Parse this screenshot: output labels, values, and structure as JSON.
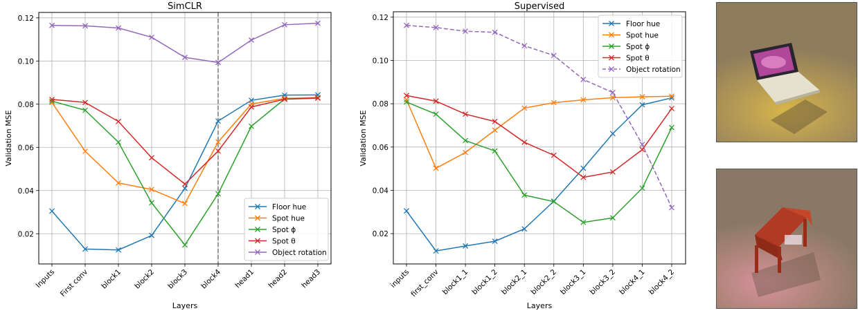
{
  "colors": {
    "floor_hue": "#1f77b4",
    "spot_hue": "#ff7f0e",
    "spot_phi": "#2ca02c",
    "spot_theta": "#d62728",
    "object_rotation": "#9467bd",
    "grid": "#b0b0b0",
    "vline": "#808080"
  },
  "chart_data": [
    {
      "type": "line",
      "title": "SimCLR",
      "xlabel": "Layers",
      "ylabel": "Validation MSE",
      "categories": [
        "Inputs",
        "First conv",
        "block1",
        "block2",
        "block3",
        "block4",
        "head1",
        "head2",
        "head3"
      ],
      "yticks": [
        "0.02",
        "0.04",
        "0.06",
        "0.08",
        "0.10",
        "0.12"
      ],
      "ylim": [
        0.006,
        0.1225
      ],
      "grid": true,
      "legend_position": "lower-right",
      "vertical_marker": "block4",
      "series": [
        {
          "name": "Floor hue",
          "color_key": "floor_hue",
          "dashed": false,
          "values": [
            0.0305,
            0.0129,
            0.0125,
            0.0192,
            0.041,
            0.0722,
            0.0818,
            0.0842,
            0.0843
          ]
        },
        {
          "name": "Spot hue",
          "color_key": "spot_hue",
          "dashed": false,
          "values": [
            0.0808,
            0.0582,
            0.0435,
            0.0405,
            0.034,
            0.0625,
            0.0801,
            0.0827,
            0.0831
          ]
        },
        {
          "name": "Spot ϕ",
          "color_key": "spot_phi",
          "dashed": false,
          "values": [
            0.0814,
            0.0772,
            0.0624,
            0.0343,
            0.0148,
            0.0385,
            0.0698,
            0.0824,
            0.0829
          ]
        },
        {
          "name": "Spot θ",
          "color_key": "spot_theta",
          "dashed": false,
          "values": [
            0.0822,
            0.0808,
            0.072,
            0.0552,
            0.043,
            0.0583,
            0.0787,
            0.0823,
            0.0828
          ]
        },
        {
          "name": "Object rotation",
          "color_key": "object_rotation",
          "dashed": false,
          "values": [
            0.1165,
            0.1163,
            0.1153,
            0.111,
            0.1017,
            0.0993,
            0.1097,
            0.1168,
            0.1175
          ]
        }
      ]
    },
    {
      "type": "line",
      "title": "Supervised",
      "xlabel": "Layers",
      "ylabel": "Validation MSE",
      "categories": [
        "inputs",
        "first_conv",
        "block1_1",
        "block1_2",
        "block2_1",
        "block2_2",
        "block3_1",
        "block3_2",
        "block4_1",
        "block4_2"
      ],
      "yticks": [
        "0.02",
        "0.04",
        "0.06",
        "0.08",
        "0.10",
        "0.12"
      ],
      "ylim": [
        0.006,
        0.1225
      ],
      "grid": true,
      "legend_position": "top-right",
      "series": [
        {
          "name": "Floor hue",
          "color_key": "floor_hue",
          "dashed": false,
          "values": [
            0.0305,
            0.012,
            0.0143,
            0.0165,
            0.0222,
            0.035,
            0.0502,
            0.0662,
            0.0795,
            0.0827
          ]
        },
        {
          "name": "Spot hue",
          "color_key": "spot_hue",
          "dashed": false,
          "values": [
            0.0818,
            0.0502,
            0.0575,
            0.0678,
            0.078,
            0.0805,
            0.0818,
            0.0828,
            0.0832,
            0.0835
          ]
        },
        {
          "name": "Spot ϕ",
          "color_key": "spot_phi",
          "dashed": false,
          "values": [
            0.0808,
            0.0752,
            0.063,
            0.0582,
            0.0378,
            0.0348,
            0.0252,
            0.0273,
            0.041,
            0.069
          ]
        },
        {
          "name": "Spot θ",
          "color_key": "spot_theta",
          "dashed": false,
          "values": [
            0.0838,
            0.0812,
            0.0752,
            0.0718,
            0.0622,
            0.0562,
            0.046,
            0.0485,
            0.0588,
            0.0778
          ]
        },
        {
          "name": "Object rotation",
          "color_key": "object_rotation",
          "dashed": true,
          "values": [
            0.1162,
            0.1152,
            0.1135,
            0.113,
            0.1068,
            0.1023,
            0.0912,
            0.0852,
            0.0612,
            0.032
          ]
        }
      ]
    }
  ]
}
